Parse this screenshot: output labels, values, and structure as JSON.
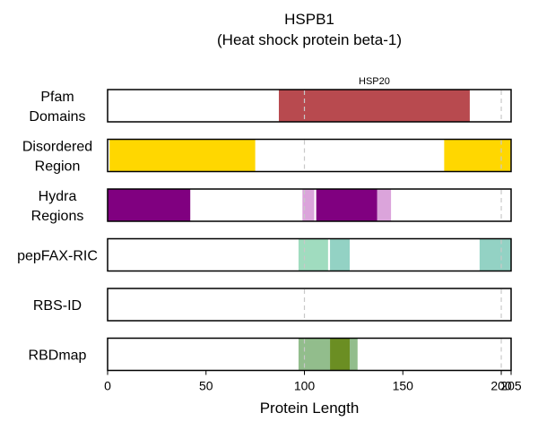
{
  "chart_data": {
    "type": "track-diagram",
    "title": "HSPB1",
    "subtitle": "(Heat shock protein beta-1)",
    "xlabel": "Protein Length",
    "xlim": [
      0,
      205
    ],
    "xticks": [
      0,
      50,
      100,
      150,
      200,
      205
    ],
    "reference_lines": [
      100,
      200
    ],
    "tracks": [
      {
        "label": [
          "Pfam",
          "Domains"
        ],
        "segments": [
          {
            "start": 87,
            "end": 184,
            "color": "#b84a4f",
            "label": "HSP20"
          }
        ]
      },
      {
        "label": [
          "Disordered",
          "Region"
        ],
        "segments": [
          {
            "start": 1,
            "end": 75,
            "color": "#ffd700"
          },
          {
            "start": 171,
            "end": 205,
            "color": "#ffd700"
          }
        ]
      },
      {
        "label": [
          "Hydra",
          "Regions"
        ],
        "segments": [
          {
            "start": 0,
            "end": 42,
            "color": "#800080"
          },
          {
            "start": 99,
            "end": 105,
            "color": "#dba4db"
          },
          {
            "start": 106,
            "end": 137,
            "color": "#800080"
          },
          {
            "start": 137,
            "end": 144,
            "color": "#dba4db"
          }
        ]
      },
      {
        "label": [
          "pepFAX-RIC"
        ],
        "segments": [
          {
            "start": 97,
            "end": 112,
            "color": "#a0dcbf"
          },
          {
            "start": 113,
            "end": 123,
            "color": "#93d2c4"
          },
          {
            "start": 189,
            "end": 205,
            "color": "#93d2c4"
          }
        ]
      },
      {
        "label": [
          "RBS-ID"
        ],
        "segments": []
      },
      {
        "label": [
          "RBDmap"
        ],
        "segments": [
          {
            "start": 97,
            "end": 113,
            "color": "#92bd8c"
          },
          {
            "start": 113,
            "end": 123,
            "color": "#6b8e23"
          },
          {
            "start": 123,
            "end": 127,
            "color": "#92bd8c"
          }
        ]
      }
    ]
  }
}
